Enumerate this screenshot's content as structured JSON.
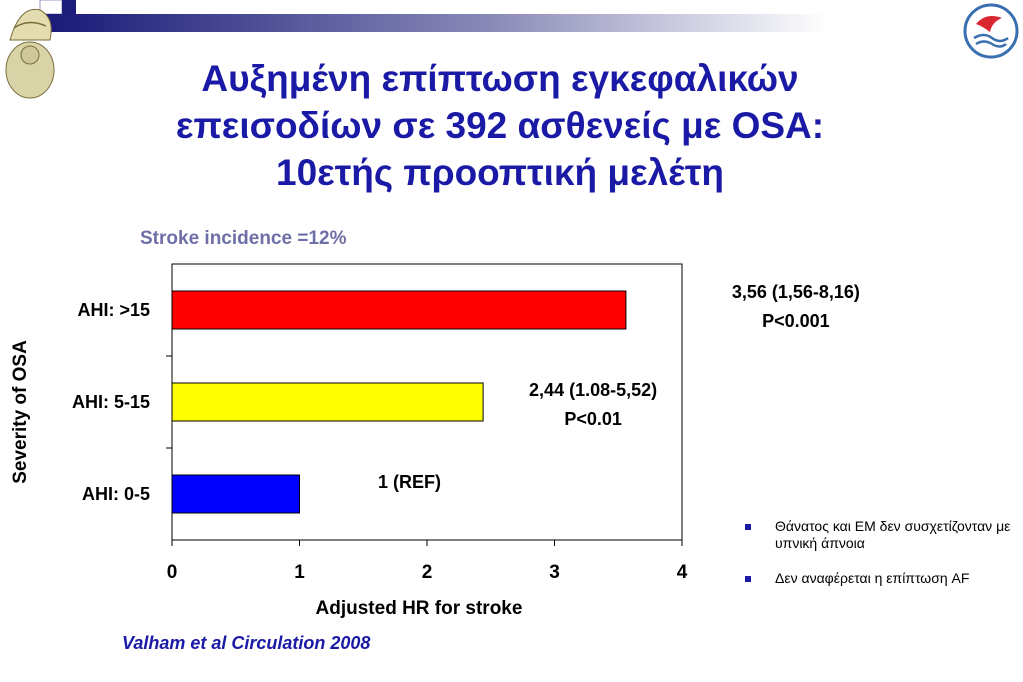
{
  "slide": {
    "title_lines": [
      "Αυξημένη επίπτωση εγκεφαλικών",
      "επεισοδίων σε 392 ασθενείς με OSA:",
      "10ετής προοπτική μελέτη"
    ],
    "subtitle": "Stroke incidence =12%",
    "citation": "Valham et al Circulation 2008",
    "notes": [
      "Θάνατος και ΕΜ δεν συσχετίζονταν με υπνική άπνοια",
      "Δεν αναφέρεται η επίπτωση AF"
    ],
    "colors": {
      "title": "#1a1aa6",
      "subtitle": "#6f6fa8",
      "bullet": "#1a1aa6"
    }
  },
  "chart_data": {
    "type": "bar",
    "orientation": "horizontal",
    "categories": [
      "AHI: >15",
      "AHI: 5-15",
      "AHI: 0-5"
    ],
    "values": [
      3.56,
      2.44,
      1
    ],
    "bar_colors": [
      "#ff0000",
      "#ffff00",
      "#0000ff"
    ],
    "annotations": [
      [
        "3,56 (1,56-8,16)",
        "P<0.001"
      ],
      [
        "2,44 (1.08-5,52)",
        "P<0.01"
      ],
      [
        "1 (REF)"
      ]
    ],
    "xlabel": "Adjusted HR for stroke",
    "ylabel": "Severity of OSA",
    "xlim": [
      0,
      4
    ],
    "xticks": [
      "0",
      "1",
      "2",
      "3",
      "4"
    ],
    "grid": false,
    "legend": "none"
  }
}
